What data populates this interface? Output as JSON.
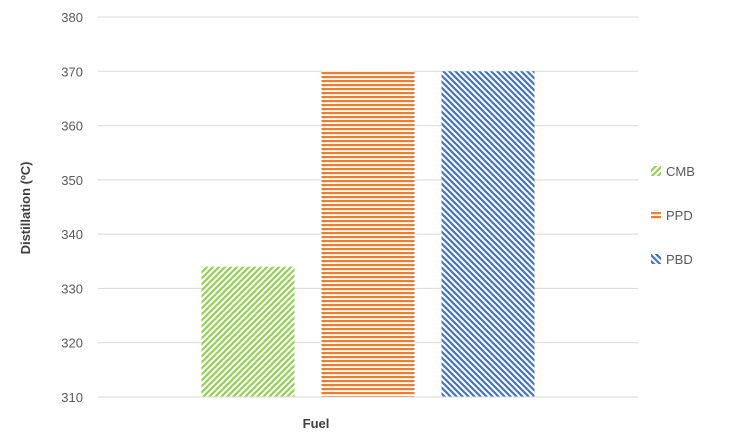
{
  "chart_data": {
    "type": "bar",
    "categories": [
      "Fuel"
    ],
    "series": [
      {
        "name": "CMB",
        "values": [
          334
        ],
        "color": "#92d050",
        "pattern": "diagonal-up"
      },
      {
        "name": "PPD",
        "values": [
          370
        ],
        "color": "#ed7d31",
        "pattern": "horizontal"
      },
      {
        "name": "PBD",
        "values": [
          370
        ],
        "color": "#4472c4",
        "pattern": "diagonal-down"
      }
    ],
    "title": "",
    "xlabel": "Fuel",
    "ylabel": "Distillation (ºC)",
    "ylim": [
      310,
      380
    ],
    "yticks": [
      "310",
      "320",
      "330",
      "340",
      "350",
      "360",
      "370",
      "380"
    ],
    "grid": true,
    "legend_position": "right"
  }
}
